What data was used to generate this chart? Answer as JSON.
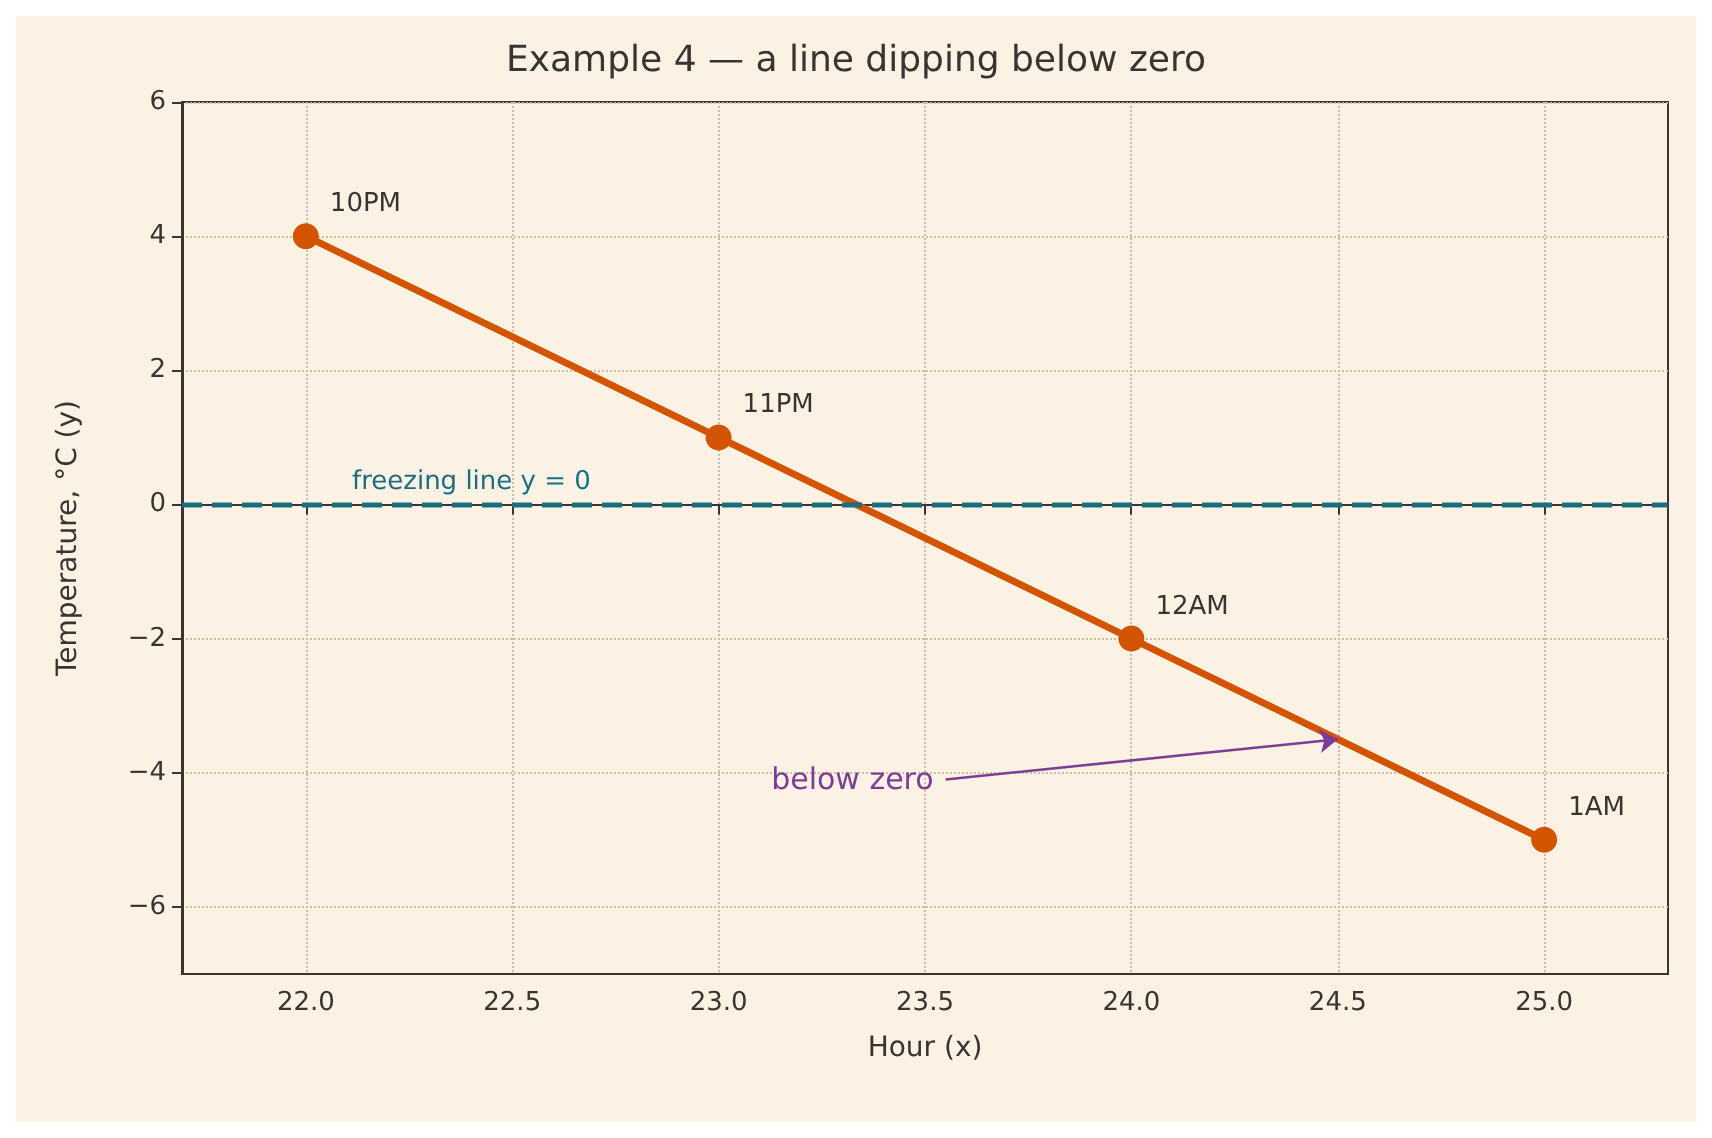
{
  "chart_data": {
    "type": "line",
    "title": "Example 4 — a line dipping below zero",
    "xlabel": "Hour (x)",
    "ylabel": "Temperature, °C (y)",
    "x": [
      22,
      23,
      24,
      25
    ],
    "series": [
      {
        "color": "#d35400",
        "values": [
          4,
          1,
          -2,
          -5
        ]
      }
    ],
    "xlim": [
      21.7,
      25.3
    ],
    "ylim": [
      -7,
      6
    ],
    "xticks": [
      {
        "value": 22,
        "label": "22.0"
      },
      {
        "value": 22.5,
        "label": "22.5"
      },
      {
        "value": 23,
        "label": "23.0"
      },
      {
        "value": 23.5,
        "label": "23.5"
      },
      {
        "value": 24,
        "label": "24.0"
      },
      {
        "value": 24.5,
        "label": "24.5"
      },
      {
        "value": 25,
        "label": "25.0"
      }
    ],
    "yticks": [
      {
        "value": -6,
        "label": "−6"
      },
      {
        "value": -4,
        "label": "−4"
      },
      {
        "value": -2,
        "label": "−2"
      },
      0,
      2,
      4,
      6
    ],
    "ref_lines": [
      {
        "axis": "y",
        "value": 0,
        "label": "freezing line y = 0",
        "color": "#1a6e80",
        "line_style": "dashed"
      }
    ],
    "annotations": [
      {
        "text": "10PM",
        "x": 22,
        "y": 4
      },
      {
        "text": "11PM",
        "x": 23,
        "y": 1
      },
      {
        "text": "12AM",
        "x": 24,
        "y": -2
      },
      {
        "text": "1AM",
        "x": 25,
        "y": -5
      },
      {
        "text": "below zero",
        "x": 24.5,
        "y": -3.5
      }
    ],
    "grid": true,
    "marker": "circle",
    "line_style": "solid"
  }
}
